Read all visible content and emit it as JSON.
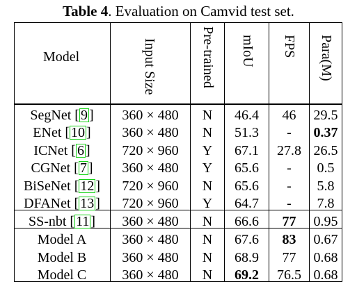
{
  "caption": {
    "label": "Table 4",
    "text": ". Evaluation on Camvid test set."
  },
  "headers": [
    "Model",
    "Input Size",
    "Pre-trained",
    "mIoU",
    "FPS",
    "Para(M)"
  ],
  "rows": [
    {
      "model": "SegNet",
      "ref": "9",
      "input": "360 × 480",
      "pre": "N",
      "miou": "46.4",
      "fps": "46",
      "para": "29.5"
    },
    {
      "model": "ENet",
      "ref": "10",
      "input": "360 × 480",
      "pre": "N",
      "miou": "51.3",
      "fps": "-",
      "para": "0.37"
    },
    {
      "model": "ICNet",
      "ref": "6",
      "input": "720 × 960",
      "pre": "Y",
      "miou": "67.1",
      "fps": "27.8",
      "para": "26.5"
    },
    {
      "model": "CGNet",
      "ref": "7",
      "input": "360 × 480",
      "pre": "Y",
      "miou": "65.6",
      "fps": "-",
      "para": "0.5"
    },
    {
      "model": "BiSeNet",
      "ref": "12",
      "input": "720 × 960",
      "pre": "N",
      "miou": "65.6",
      "fps": "-",
      "para": "5.8"
    },
    {
      "model": "DFANet",
      "ref": "13",
      "input": "720 × 960",
      "pre": "Y",
      "miou": "64.7",
      "fps": "-",
      "para": "7.8"
    },
    {
      "model": "SS-nbt",
      "ref": "11",
      "input": "360 × 480",
      "pre": "N",
      "miou": "66.6",
      "fps": "77",
      "para": "0.95"
    },
    {
      "model": "Model A",
      "ref": "",
      "input": "360 × 480",
      "pre": "N",
      "miou": "67.6",
      "fps": "83",
      "para": "0.67"
    },
    {
      "model": "Model B",
      "ref": "",
      "input": "360 × 480",
      "pre": "N",
      "miou": "68.9",
      "fps": "77",
      "para": "0.68"
    },
    {
      "model": "Model C",
      "ref": "",
      "input": "360 × 480",
      "pre": "N",
      "miou": "69.2",
      "fps": "76.5",
      "para": "0.68"
    }
  ]
}
